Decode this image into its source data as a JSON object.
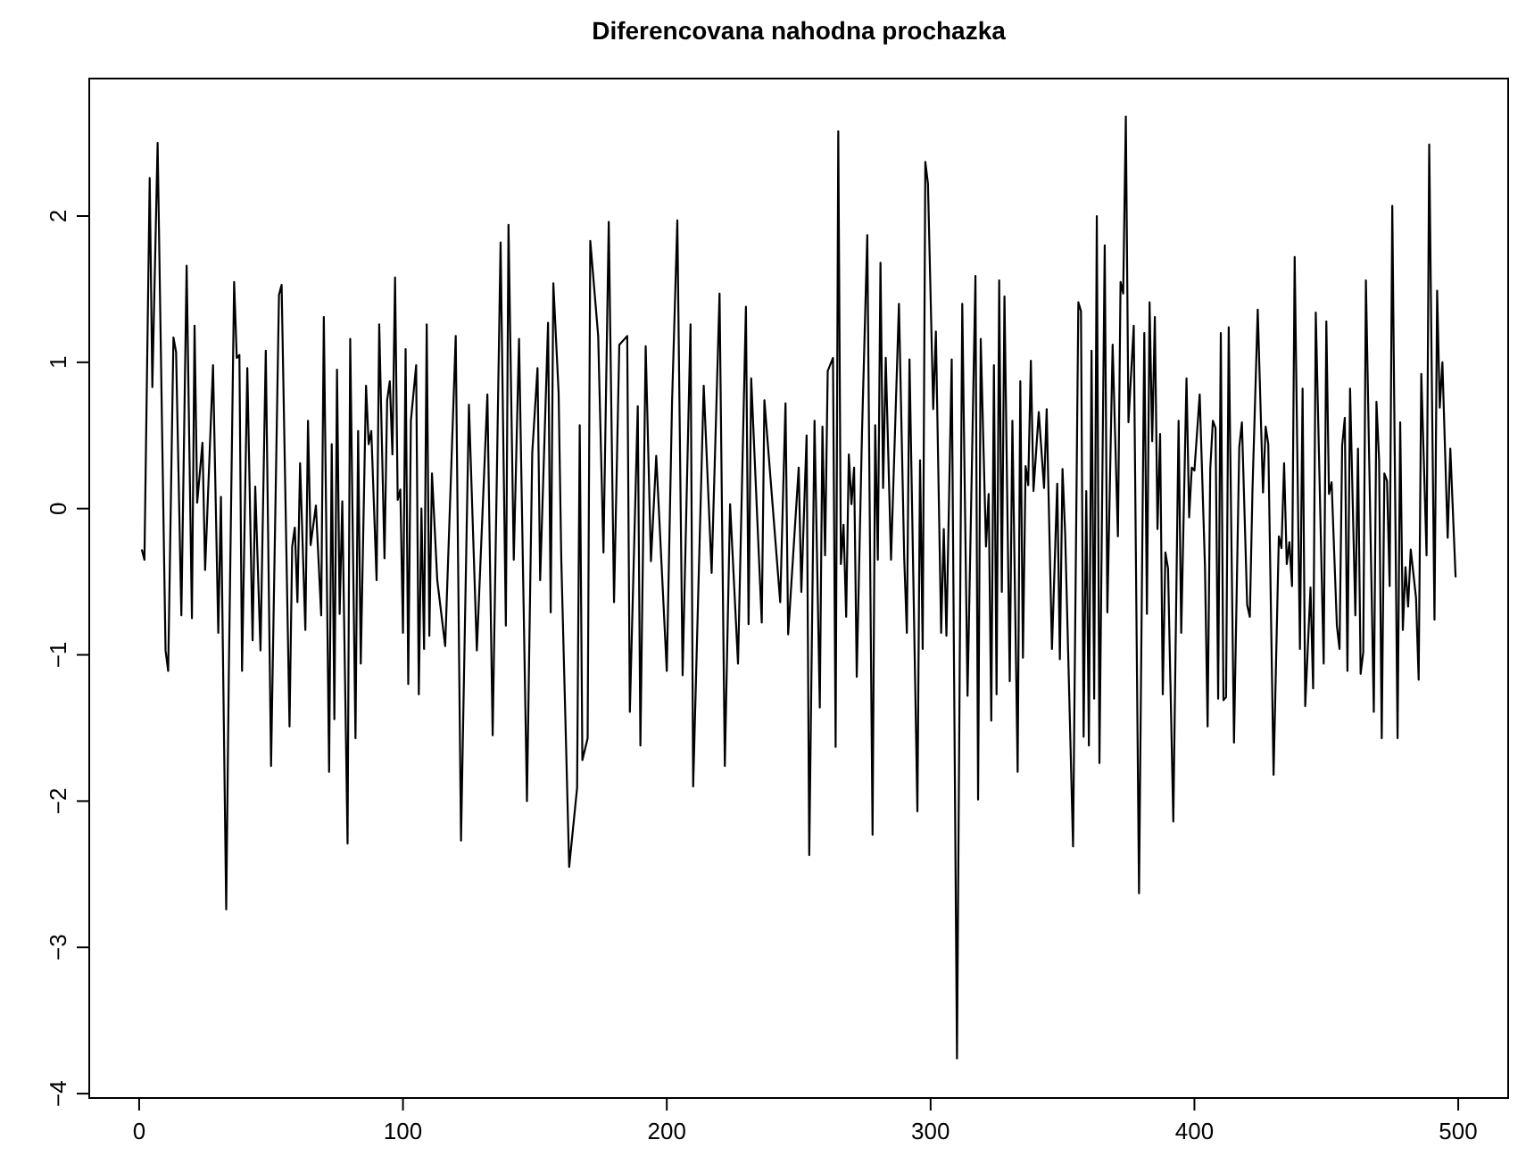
{
  "chart_data": {
    "type": "line",
    "title": "Diferencovana nahodna prochazka",
    "xlim": [
      -18.92,
      518.92
    ],
    "ylim": [
      -4.03,
      2.94
    ],
    "xticks": [
      0,
      100,
      200,
      300,
      400,
      500
    ],
    "yticks": [
      -4,
      -3,
      -2,
      -1,
      0,
      1,
      2
    ],
    "grid": false,
    "marker": "none",
    "line_style": "solid",
    "series": [
      {
        "color": "#000000",
        "x": [
          1,
          2,
          4,
          5,
          7,
          10,
          11,
          13,
          14,
          16,
          18,
          20,
          21,
          22,
          24,
          25,
          28,
          30,
          31,
          33,
          34,
          36,
          37,
          38,
          39,
          41,
          43,
          44,
          46,
          48,
          50,
          53,
          54,
          57,
          58,
          59,
          60,
          61,
          63,
          64,
          65,
          67,
          69,
          70,
          72,
          73,
          74,
          75,
          76,
          77,
          79,
          80,
          82,
          83,
          84,
          86,
          87,
          88,
          90,
          91,
          93,
          94,
          95,
          96,
          97,
          98,
          99,
          100,
          101,
          102,
          103,
          105,
          106,
          107,
          108,
          109,
          110,
          111,
          113,
          116,
          120,
          122,
          125,
          128,
          132,
          134,
          137,
          139,
          140,
          142,
          144,
          147,
          149,
          151,
          152,
          155,
          156,
          157,
          159,
          160,
          163,
          166,
          167,
          168,
          170,
          171,
          174,
          176,
          178,
          180,
          182,
          185,
          186,
          189,
          190,
          192,
          194,
          196,
          200,
          202,
          204,
          206,
          209,
          210,
          214,
          217,
          220,
          222,
          224,
          227,
          230,
          231,
          232,
          236,
          237,
          243,
          245,
          246,
          250,
          251,
          253,
          254,
          256,
          258,
          259,
          260,
          261,
          263,
          264,
          265,
          266,
          267,
          268,
          269,
          270,
          271,
          272,
          274,
          276,
          278,
          279,
          280,
          281,
          282,
          283,
          285,
          288,
          290,
          291,
          292,
          295,
          296,
          297,
          298,
          299,
          301,
          302,
          304,
          305,
          306,
          308,
          310,
          312,
          314,
          317,
          318,
          319,
          321,
          322,
          323,
          324,
          325,
          326,
          327,
          328,
          330,
          331,
          333,
          334,
          335,
          336,
          337,
          338,
          339,
          341,
          343,
          344,
          346,
          348,
          349,
          350,
          351,
          354,
          356,
          357,
          358,
          359,
          360,
          361,
          362,
          363,
          364,
          366,
          367,
          369,
          371,
          372,
          373,
          374,
          375,
          377,
          379,
          381,
          382,
          383,
          384,
          385,
          386,
          387,
          388,
          389,
          390,
          392,
          394,
          395,
          397,
          398,
          399,
          400,
          402,
          404,
          405,
          406,
          407,
          408,
          409,
          410,
          411,
          412,
          413,
          415,
          417,
          418,
          420,
          421,
          422,
          424,
          426,
          427,
          428,
          430,
          432,
          433,
          434,
          435,
          436,
          437,
          438,
          440,
          441,
          442,
          444,
          445,
          446,
          449,
          450,
          451,
          452,
          454,
          455,
          456,
          457,
          458,
          459,
          461,
          462,
          463,
          464,
          465,
          468,
          469,
          470,
          471,
          472,
          473,
          474,
          475,
          477,
          478,
          479,
          480,
          481,
          482,
          484,
          485,
          486,
          488,
          489,
          491,
          492,
          493,
          494,
          496,
          497,
          499
        ],
        "values": [
          -0.28,
          -0.35,
          2.26,
          0.83,
          2.5,
          -0.97,
          -1.11,
          1.17,
          1.07,
          -0.73,
          1.66,
          -0.75,
          1.25,
          0.04,
          0.45,
          -0.42,
          0.98,
          -0.85,
          0.08,
          -2.74,
          -1.11,
          1.55,
          1.03,
          1.05,
          -1.11,
          0.96,
          -0.9,
          0.15,
          -0.97,
          1.08,
          -1.76,
          1.46,
          1.53,
          -1.49,
          -0.26,
          -0.13,
          -0.64,
          0.31,
          -0.83,
          0.6,
          -0.25,
          0.02,
          -0.73,
          1.31,
          -1.8,
          0.44,
          -1.44,
          0.95,
          -0.72,
          0.05,
          -2.29,
          1.16,
          -1.57,
          0.53,
          -1.06,
          0.84,
          0.44,
          0.53,
          -0.49,
          1.26,
          -0.34,
          0.74,
          0.87,
          0.37,
          1.58,
          0.06,
          0.13,
          -0.85,
          1.09,
          -1.2,
          0.6,
          0.98,
          -1.27,
          0.0,
          -0.96,
          1.26,
          -0.87,
          0.24,
          -0.49,
          -0.94,
          1.18,
          -2.27,
          0.71,
          -0.97,
          0.78,
          -1.55,
          1.82,
          -0.8,
          1.94,
          -0.35,
          1.16,
          -2.0,
          0.38,
          0.96,
          -0.49,
          1.27,
          -0.71,
          1.54,
          0.79,
          -0.34,
          -2.45,
          -1.91,
          0.57,
          -1.72,
          -1.57,
          1.83,
          1.18,
          -0.3,
          1.96,
          -0.64,
          1.12,
          1.18,
          -1.39,
          0.7,
          -1.62,
          1.11,
          -0.36,
          0.36,
          -1.11,
          0.73,
          1.97,
          -1.14,
          1.26,
          -1.9,
          0.84,
          -0.44,
          1.47,
          -1.76,
          0.03,
          -1.06,
          1.38,
          -0.79,
          0.89,
          -0.78,
          0.74,
          -0.64,
          0.72,
          -0.86,
          0.28,
          -0.57,
          0.5,
          -2.37,
          0.6,
          -1.36,
          0.56,
          -0.32,
          0.94,
          1.03,
          -1.63,
          2.58,
          -0.38,
          -0.11,
          -0.74,
          0.37,
          0.03,
          0.28,
          -1.15,
          0.52,
          1.87,
          -2.23,
          0.57,
          -0.35,
          1.68,
          0.14,
          1.03,
          -0.35,
          1.4,
          -0.34,
          -0.85,
          1.02,
          -2.07,
          0.33,
          -0.96,
          2.37,
          2.22,
          0.68,
          1.21,
          -0.85,
          -0.14,
          -0.87,
          1.02,
          -3.76,
          1.4,
          -1.28,
          1.59,
          -1.99,
          1.16,
          -0.26,
          0.1,
          -1.45,
          0.98,
          -1.27,
          1.56,
          -0.57,
          1.45,
          -1.18,
          0.6,
          -1.8,
          0.87,
          -1.02,
          0.29,
          0.16,
          1.01,
          0.12,
          0.66,
          0.14,
          0.68,
          -0.96,
          0.17,
          -1.03,
          0.27,
          -0.17,
          -2.31,
          1.41,
          1.35,
          -1.56,
          0.12,
          -1.62,
          1.08,
          -1.3,
          2.0,
          -1.74,
          1.8,
          -0.71,
          1.12,
          -0.19,
          1.55,
          1.47,
          2.68,
          0.59,
          1.25,
          -2.63,
          1.2,
          -0.72,
          1.41,
          0.46,
          1.31,
          -0.14,
          0.51,
          -1.27,
          -0.3,
          -0.41,
          -2.14,
          0.6,
          -0.85,
          0.89,
          -0.06,
          0.28,
          0.26,
          0.78,
          -0.4,
          -1.49,
          0.27,
          0.6,
          0.55,
          -1.3,
          1.2,
          -1.31,
          -1.29,
          1.24,
          -1.6,
          0.42,
          0.59,
          -0.66,
          -0.74,
          0.12,
          1.36,
          0.11,
          0.56,
          0.44,
          -1.82,
          -0.19,
          -0.27,
          0.31,
          -0.38,
          -0.23,
          -0.53,
          1.72,
          -0.96,
          0.82,
          -1.35,
          -0.54,
          -1.23,
          1.34,
          -1.06,
          1.28,
          0.1,
          0.18,
          -0.8,
          -0.96,
          0.43,
          0.62,
          -1.11,
          0.82,
          -0.73,
          0.41,
          -1.13,
          -0.98,
          1.56,
          -1.39,
          0.73,
          0.33,
          -1.57,
          0.24,
          0.19,
          -0.53,
          2.07,
          -1.57,
          0.59,
          -0.83,
          -0.4,
          -0.67,
          -0.28,
          -0.61,
          -1.17,
          0.92,
          -0.32,
          2.49,
          -0.76,
          1.49,
          0.69,
          1.0,
          -0.2,
          0.41,
          -0.47
        ]
      }
    ]
  }
}
